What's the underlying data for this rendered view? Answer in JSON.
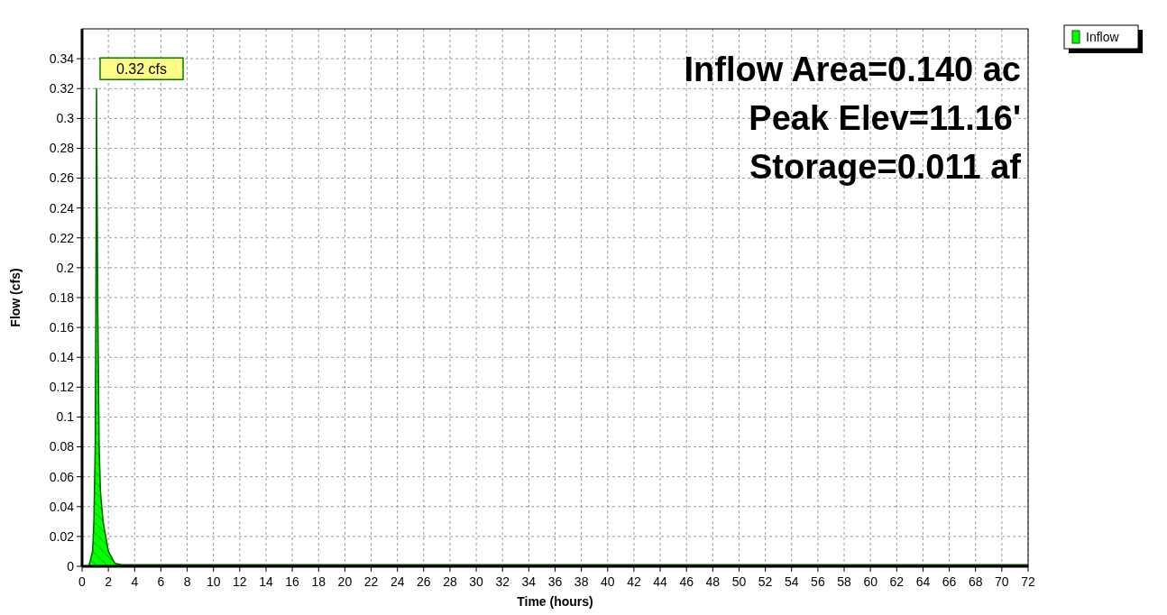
{
  "chart_data": {
    "type": "area",
    "xlabel": "Time  (hours)",
    "ylabel": "Flow  (cfs)",
    "x": [
      0,
      0.5,
      0.6,
      0.8,
      0.9,
      1.0,
      1.05,
      1.1,
      1.2,
      1.3,
      1.4,
      1.6,
      2.0,
      2.5,
      3,
      72
    ],
    "series": [
      {
        "name": "Inflow",
        "color": "#00ff00",
        "values": [
          0,
          0,
          0.003,
          0.01,
          0.03,
          0.08,
          0.17,
          0.32,
          0.17,
          0.08,
          0.05,
          0.03,
          0.01,
          0.002,
          0.001,
          0.001
        ]
      }
    ],
    "xlim": [
      0,
      72
    ],
    "xticks": [
      0,
      2,
      4,
      6,
      8,
      10,
      12,
      14,
      16,
      18,
      20,
      22,
      24,
      26,
      28,
      30,
      32,
      34,
      36,
      38,
      40,
      42,
      44,
      46,
      48,
      50,
      52,
      54,
      56,
      58,
      60,
      62,
      64,
      66,
      68,
      70,
      72
    ],
    "ylim": [
      0,
      0.36
    ],
    "yticks": [
      0,
      0.02,
      0.04,
      0.06,
      0.08,
      0.1,
      0.12,
      0.14,
      0.16,
      0.18,
      0.2,
      0.22,
      0.24,
      0.26,
      0.28,
      0.3,
      0.32,
      0.34
    ],
    "grid": true,
    "legend": "top right",
    "annotations": [
      {
        "text": "0.32 cfs",
        "x": 1.1,
        "y": 0.32
      },
      "Inflow Area=0.140 ac",
      "Peak Elev=11.16'",
      "Storage=0.011 af"
    ]
  }
}
